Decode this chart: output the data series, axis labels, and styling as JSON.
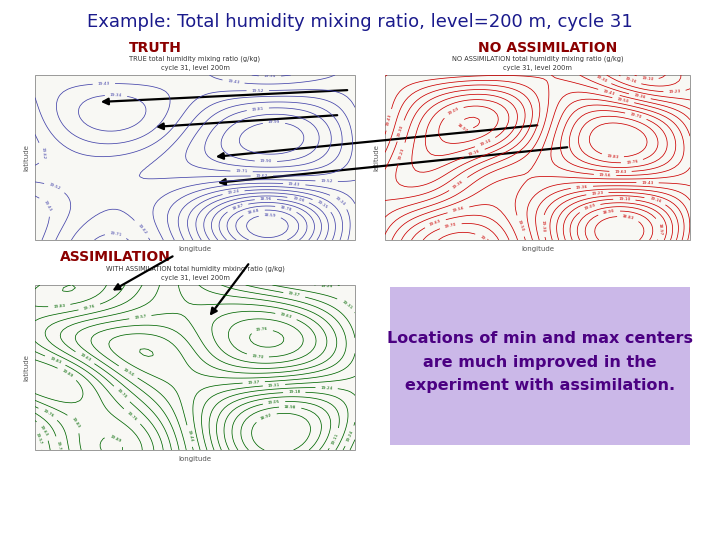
{
  "title": "Example: Total humidity mixing ratio, level=200 m, cycle 31",
  "title_color": "#1a1a8c",
  "title_fontsize": 13,
  "label_truth": "TRUTH",
  "label_no_assim": "NO ASSIMILATION",
  "label_assim": "ASSIMILATION",
  "label_color_red": "#8b0000",
  "plot1_title1": "TRUE total humidity mixing ratio (g/kg)",
  "plot1_title2": "cycle 31, level 200m",
  "plot2_title1": "NO ASSIMILATION total humidity mixing ratio (g/kg)",
  "plot2_title2": "cycle 31, level 200m",
  "plot3_title1": "WITH ASSIMILATION total humidity mixing ratio (g/kg)",
  "plot3_title2": "cycle 31, level 200m",
  "text_box_text": "Locations of min and max centers\nare much improved in the\nexperiment with assimilation.",
  "text_box_color": "#cbb8e8",
  "text_box_font_color": "#4b0082",
  "bg_color": "#ffffff",
  "contour_color_blue": "#4444aa",
  "contour_color_red": "#cc0000",
  "contour_color_green": "#006600",
  "plot_bg": "#f8f8f4",
  "plot_edge": "#999999",
  "axis_font_size": 5.0,
  "label_font_size": 10,
  "title_font_weight": "normal"
}
